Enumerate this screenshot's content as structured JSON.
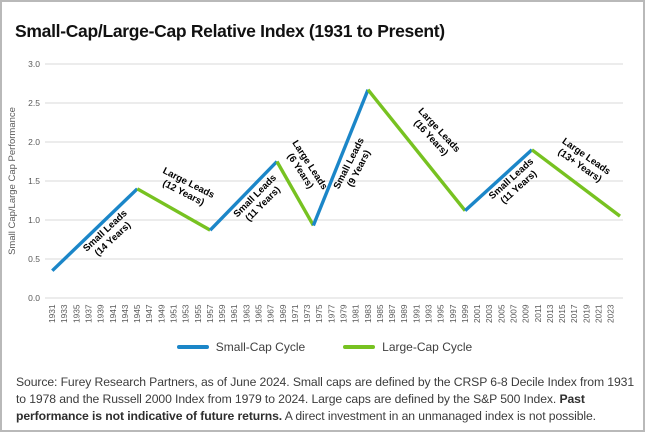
{
  "header": {
    "title": "Small-Cap/Large-Cap Relative Index (1931 to Present)"
  },
  "chart_data": {
    "type": "line",
    "title": "Small-Cap/Large-Cap Relative Index (1931 to Present)",
    "xlabel": "",
    "ylabel": "Small Cap/Large Cap Performance",
    "ylim": [
      0.0,
      3.0
    ],
    "ytick_step": 0.5,
    "ytick_labels": [
      "0.0",
      "0.5",
      "1.0",
      "1.5",
      "2.0",
      "2.5",
      "3.0"
    ],
    "xlim": [
      1929.8,
      2025.0
    ],
    "xticks": [
      1931,
      1933,
      1935,
      1937,
      1939,
      1941,
      1943,
      1945,
      1947,
      1949,
      1951,
      1953,
      1955,
      1957,
      1959,
      1961,
      1963,
      1965,
      1967,
      1969,
      1971,
      1973,
      1975,
      1977,
      1979,
      1981,
      1983,
      1985,
      1987,
      1989,
      1991,
      1993,
      1995,
      1997,
      1999,
      2001,
      2003,
      2005,
      2007,
      2009,
      2011,
      2013,
      2015,
      2017,
      2019,
      2021,
      2023
    ],
    "grid": "horizontal",
    "grid_color": "#d9d9d9",
    "tick_label_color": "#595959",
    "colors": {
      "small_cap": "#1b86c8",
      "large_cap": "#77c221"
    },
    "line_width": 3.4,
    "legend_position": "bottom-center",
    "legend": [
      {
        "label": "Small-Cap Cycle",
        "color_key": "small_cap"
      },
      {
        "label": "Large-Cap Cycle",
        "color_key": "large_cap"
      }
    ],
    "segments": [
      {
        "cycle": "small_cap",
        "name": "small-leads-1931-1945",
        "points": [
          [
            1931,
            0.35
          ],
          [
            1945,
            1.4
          ]
        ]
      },
      {
        "cycle": "large_cap",
        "name": "large-leads-1945-1957",
        "points": [
          [
            1945,
            1.4
          ],
          [
            1957,
            0.87
          ]
        ]
      },
      {
        "cycle": "small_cap",
        "name": "small-leads-1957-1968",
        "points": [
          [
            1957,
            0.87
          ],
          [
            1968,
            1.75
          ]
        ]
      },
      {
        "cycle": "large_cap",
        "name": "large-leads-1968-1974",
        "points": [
          [
            1968,
            1.75
          ],
          [
            1974,
            0.93
          ]
        ]
      },
      {
        "cycle": "small_cap",
        "name": "small-leads-1974-1983",
        "points": [
          [
            1974,
            0.93
          ],
          [
            1983,
            2.67
          ]
        ]
      },
      {
        "cycle": "large_cap",
        "name": "large-leads-1983-1999",
        "points": [
          [
            1983,
            2.67
          ],
          [
            1999,
            1.12
          ]
        ]
      },
      {
        "cycle": "small_cap",
        "name": "small-leads-1999-2010",
        "points": [
          [
            1999,
            1.12
          ],
          [
            2010,
            1.9
          ]
        ]
      },
      {
        "cycle": "large_cap",
        "name": "large-leads-2010-2024",
        "points": [
          [
            2010,
            1.9
          ],
          [
            2024.5,
            1.05
          ]
        ]
      }
    ],
    "annotations": [
      {
        "lines": [
          "Small Leads",
          "(14 Years)"
        ],
        "x": 107,
        "y": 233,
        "angle": -43
      },
      {
        "lines": [
          "Large Leads",
          "(12 Years)"
        ],
        "x": 184,
        "y": 186,
        "angle": 27
      },
      {
        "lines": [
          "Small Leads",
          "(11 Years)"
        ],
        "x": 257,
        "y": 198,
        "angle": -45
      },
      {
        "lines": [
          "Large Leads",
          "(6 Years)"
        ],
        "x": 303,
        "y": 166,
        "angle": 57
      },
      {
        "lines": [
          "Small Leads",
          "(9 Years)"
        ],
        "x": 352,
        "y": 164,
        "angle": -63
      },
      {
        "lines": [
          "Large Leads",
          "(16 Years)"
        ],
        "x": 433,
        "y": 132,
        "angle": 47
      },
      {
        "lines": [
          "Small Leads",
          "(11 Years)"
        ],
        "x": 513,
        "y": 181,
        "angle": -42
      },
      {
        "lines": [
          "Large Leads",
          "(13+ Years)"
        ],
        "x": 581,
        "y": 159,
        "angle": 35
      }
    ]
  },
  "footer": {
    "source": "Source: Furey Research Partners, as of June 2024. Small caps are defined by the CRSP 6-8 Decile Index from 1931 to 1978 and the Russell 2000 Index from 1979 to 2024. Large caps are defined by the S&P 500 Index. ",
    "bold": "Past performance is not indicative of future returns.",
    "after": " A direct investment in an unmanaged index is not possible."
  }
}
